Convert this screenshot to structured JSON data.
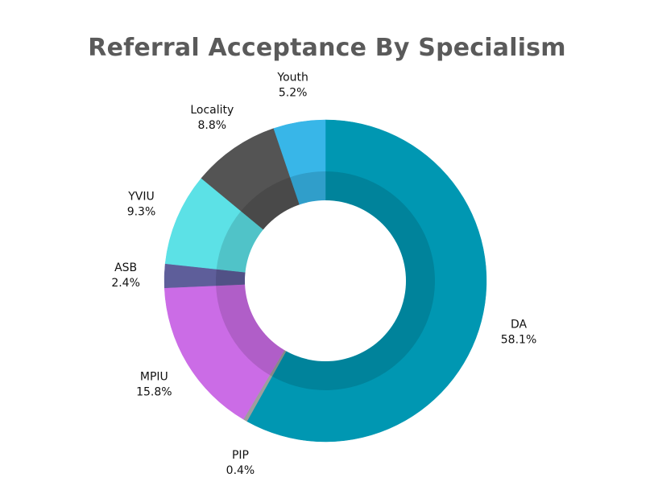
{
  "chart_data": {
    "type": "pie",
    "variant": "donut",
    "title": "Referral Acceptance By Specialism",
    "slices": [
      {
        "name": "DA",
        "value": 58.1,
        "label": "58.1%",
        "color": "#0097b2"
      },
      {
        "name": "PIP",
        "value": 0.4,
        "label": "0.4%",
        "color": "#9e9e9e"
      },
      {
        "name": "MPIU",
        "value": 15.8,
        "label": "15.8%",
        "color": "#cb6ce6"
      },
      {
        "name": "ASB",
        "value": 2.4,
        "label": "2.4%",
        "color": "#5e5e9a"
      },
      {
        "name": "YVIU",
        "value": 9.3,
        "label": "9.3%",
        "color": "#5ce1e6"
      },
      {
        "name": "Locality",
        "value": 8.8,
        "label": "8.8%",
        "color": "#545454"
      },
      {
        "name": "Youth",
        "value": 5.2,
        "label": "5.2%",
        "color": "#38b6e8"
      }
    ],
    "legend": "none",
    "start_angle": "top",
    "direction": "clockwise"
  }
}
